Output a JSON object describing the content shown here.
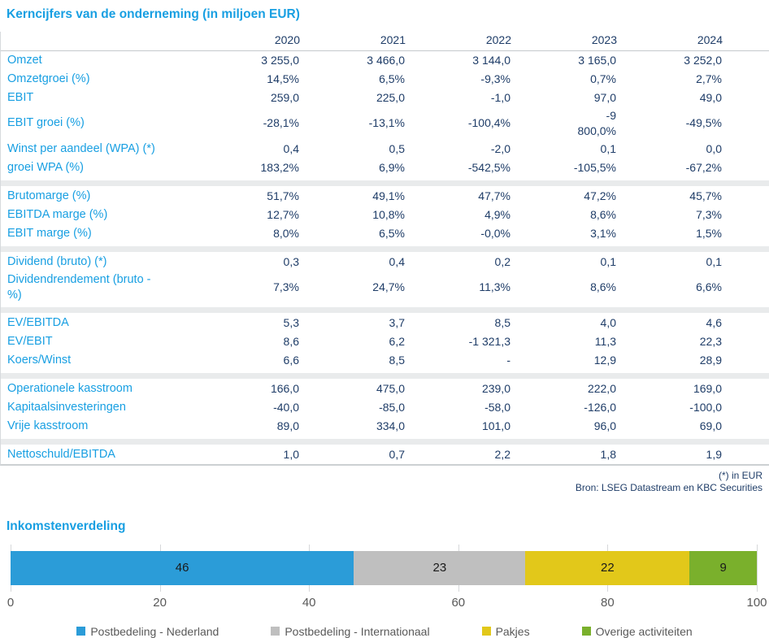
{
  "colors": {
    "accent_blue": "#189fe2",
    "value_navy": "#1f3d68",
    "separator_band": "#e9ebec",
    "grid_line": "#d6d8da",
    "axis_text": "#595959"
  },
  "table": {
    "title": "Kerncijfers van de onderneming (in miljoen EUR)",
    "columns": [
      "2020",
      "2021",
      "2022",
      "2023",
      "2024"
    ],
    "sections": [
      {
        "rows": [
          {
            "label": "Omzet",
            "values": [
              "3 255,0",
              "3 466,0",
              "3 144,0",
              "3 165,0",
              "3 252,0"
            ]
          },
          {
            "label": "Omzetgroei (%)",
            "values": [
              "14,5%",
              "6,5%",
              "-9,3%",
              "0,7%",
              "2,7%"
            ]
          },
          {
            "label": "EBIT",
            "values": [
              "259,0",
              "225,0",
              "-1,0",
              "97,0",
              "49,0"
            ]
          },
          {
            "label": "EBIT groei (%)",
            "values": [
              "-28,1%",
              "-13,1%",
              "-100,4%",
              "-9\n800,0%",
              "-49,5%"
            ]
          },
          {
            "label": "Winst per aandeel (WPA) (*)",
            "values": [
              "0,4",
              "0,5",
              "-2,0",
              "0,1",
              "0,0"
            ]
          },
          {
            "label": "groei WPA (%)",
            "values": [
              "183,2%",
              "6,9%",
              "-542,5%",
              "-105,5%",
              "-67,2%"
            ]
          }
        ]
      },
      {
        "rows": [
          {
            "label": "Brutomarge (%)",
            "values": [
              "51,7%",
              "49,1%",
              "47,7%",
              "47,2%",
              "45,7%"
            ]
          },
          {
            "label": "EBITDA marge (%)",
            "values": [
              "12,7%",
              "10,8%",
              "4,9%",
              "8,6%",
              "7,3%"
            ]
          },
          {
            "label": "EBIT marge (%)",
            "values": [
              "8,0%",
              "6,5%",
              "-0,0%",
              "3,1%",
              "1,5%"
            ]
          }
        ]
      },
      {
        "rows": [
          {
            "label": "Dividend (bruto) (*)",
            "values": [
              "0,3",
              "0,4",
              "0,2",
              "0,1",
              "0,1"
            ]
          },
          {
            "label": "Dividendrendement (bruto -\n%)",
            "values": [
              "7,3%",
              "24,7%",
              "11,3%",
              "8,6%",
              "6,6%"
            ]
          }
        ]
      },
      {
        "rows": [
          {
            "label": "EV/EBITDA",
            "values": [
              "5,3",
              "3,7",
              "8,5",
              "4,0",
              "4,6"
            ]
          },
          {
            "label": "EV/EBIT",
            "values": [
              "8,6",
              "6,2",
              "-1 321,3",
              "11,3",
              "22,3"
            ]
          },
          {
            "label": "Koers/Winst",
            "values": [
              "6,6",
              "8,5",
              "-",
              "12,9",
              "28,9"
            ]
          }
        ]
      },
      {
        "rows": [
          {
            "label": "Operationele kasstroom",
            "values": [
              "166,0",
              "475,0",
              "239,0",
              "222,0",
              "169,0"
            ]
          },
          {
            "label": "Kapitaalsinvesteringen",
            "values": [
              "-40,0",
              "-85,0",
              "-58,0",
              "-126,0",
              "-100,0"
            ]
          },
          {
            "label": "Vrije kasstroom",
            "values": [
              "89,0",
              "334,0",
              "101,0",
              "96,0",
              "69,0"
            ]
          }
        ]
      },
      {
        "rows": [
          {
            "label": "Nettoschuld/EBITDA",
            "values": [
              "1,0",
              "0,7",
              "2,2",
              "1,8",
              "1,9"
            ]
          }
        ]
      }
    ],
    "footnote": "(*) in EUR",
    "source": "Bron: LSEG Datastream en KBC Securities"
  },
  "chart_data": {
    "type": "bar",
    "stacked": true,
    "orientation": "horizontal",
    "title": "Inkomstenverdeling",
    "xlim": [
      0,
      100
    ],
    "x_ticks": [
      0,
      20,
      40,
      60,
      80,
      100
    ],
    "grid": true,
    "legend_position": "bottom",
    "segments": [
      {
        "label": "Postbedeling - Nederland",
        "value": 46,
        "color": "#2b9cd8"
      },
      {
        "label": "Postbedeling - Internationaal",
        "value": 23,
        "color": "#bfbfbf"
      },
      {
        "label": "Pakjes",
        "value": 22,
        "color": "#e2c81a"
      },
      {
        "label": "Overige activiteiten",
        "value": 9,
        "color": "#7ab02c"
      }
    ]
  }
}
